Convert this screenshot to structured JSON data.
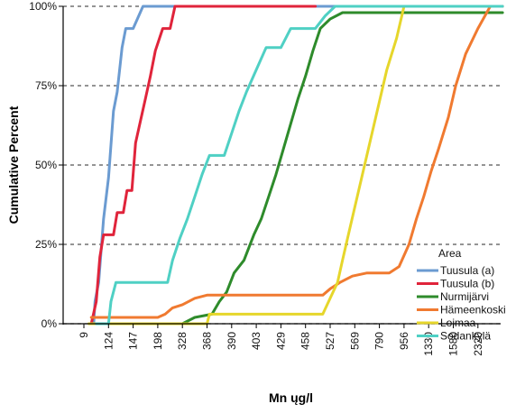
{
  "chart_data": {
    "type": "line",
    "title": "",
    "xlabel": "Mn ųg/l",
    "ylabel": "Cumulative Percent",
    "x_ticks": [
      "9",
      "124",
      "147",
      "198",
      "328",
      "368",
      "390",
      "403",
      "429",
      "458",
      "527",
      "569",
      "790",
      "956",
      "1330",
      "1580",
      "2320"
    ],
    "y_ticks": [
      "0%",
      "25%",
      "50%",
      "75%",
      "100%"
    ],
    "ylim": [
      0,
      100
    ],
    "grid": "horizontal dashed",
    "legend": {
      "title": "Area",
      "position": "bottom-right"
    },
    "series": [
      {
        "name": "Tuusula (a)",
        "color": "#6b9bd1",
        "points": [
          [
            0.4,
            0
          ],
          [
            0.45,
            7
          ],
          [
            0.6,
            13
          ],
          [
            0.8,
            33
          ],
          [
            1.0,
            46
          ],
          [
            1.2,
            67
          ],
          [
            1.35,
            73
          ],
          [
            1.55,
            87
          ],
          [
            1.7,
            93
          ],
          [
            2.0,
            93
          ],
          [
            2.4,
            100
          ],
          [
            17,
            100
          ]
        ]
      },
      {
        "name": "Tuusula (b)",
        "color": "#e0243b",
        "points": [
          [
            0.3,
            0
          ],
          [
            0.5,
            7
          ],
          [
            0.65,
            21
          ],
          [
            0.8,
            28
          ],
          [
            1.2,
            28
          ],
          [
            1.35,
            35
          ],
          [
            1.6,
            35
          ],
          [
            1.75,
            42
          ],
          [
            1.95,
            42
          ],
          [
            2.1,
            57
          ],
          [
            2.3,
            64
          ],
          [
            2.5,
            71
          ],
          [
            2.7,
            78
          ],
          [
            2.9,
            86
          ],
          [
            3.2,
            93
          ],
          [
            3.5,
            93
          ],
          [
            3.7,
            100
          ],
          [
            9.4,
            100
          ]
        ]
      },
      {
        "name": "Nurmijärvi",
        "color": "#2e8b2b",
        "points": [
          [
            4.0,
            0
          ],
          [
            4.5,
            2
          ],
          [
            5.2,
            3
          ],
          [
            5.5,
            7
          ],
          [
            5.8,
            10
          ],
          [
            6.1,
            16
          ],
          [
            6.5,
            20
          ],
          [
            6.9,
            28
          ],
          [
            7.2,
            33
          ],
          [
            7.5,
            40
          ],
          [
            7.8,
            47
          ],
          [
            8.1,
            55
          ],
          [
            8.4,
            63
          ],
          [
            8.7,
            71
          ],
          [
            9.0,
            78
          ],
          [
            9.3,
            86
          ],
          [
            9.6,
            93
          ],
          [
            10.0,
            96
          ],
          [
            10.5,
            98
          ],
          [
            17,
            98
          ]
        ]
      },
      {
        "name": "Hämeenkoski",
        "color": "#f07a30",
        "points": [
          [
            0.3,
            2
          ],
          [
            3.0,
            2
          ],
          [
            3.3,
            3
          ],
          [
            3.6,
            5
          ],
          [
            4.0,
            6
          ],
          [
            4.5,
            8
          ],
          [
            5.0,
            9
          ],
          [
            9.7,
            9
          ],
          [
            10.0,
            11
          ],
          [
            10.4,
            13
          ],
          [
            10.9,
            15
          ],
          [
            11.5,
            16
          ],
          [
            12.4,
            16
          ],
          [
            12.8,
            18
          ],
          [
            13.2,
            25
          ],
          [
            13.5,
            33
          ],
          [
            13.8,
            40
          ],
          [
            14.1,
            48
          ],
          [
            14.4,
            55
          ],
          [
            14.8,
            65
          ],
          [
            15.1,
            75
          ],
          [
            15.5,
            85
          ],
          [
            16.0,
            93
          ],
          [
            16.5,
            100
          ],
          [
            17,
            100
          ]
        ]
      },
      {
        "name": "Loimaa",
        "color": "#e6d62b",
        "points": [
          [
            0.2,
            0
          ],
          [
            5.0,
            0
          ],
          [
            5.1,
            3
          ],
          [
            9.7,
            3
          ],
          [
            10.0,
            8
          ],
          [
            10.3,
            13
          ],
          [
            10.5,
            20
          ],
          [
            10.8,
            30
          ],
          [
            11.1,
            40
          ],
          [
            11.4,
            50
          ],
          [
            11.7,
            60
          ],
          [
            12.0,
            70
          ],
          [
            12.3,
            80
          ],
          [
            12.7,
            90
          ],
          [
            13.0,
            100
          ]
        ]
      },
      {
        "name": "Sodankylä",
        "color": "#4fd0c4",
        "points": [
          [
            0.5,
            0
          ],
          [
            1.0,
            0
          ],
          [
            1.1,
            7
          ],
          [
            1.3,
            13
          ],
          [
            3.4,
            13
          ],
          [
            3.6,
            20
          ],
          [
            3.9,
            27
          ],
          [
            4.2,
            33
          ],
          [
            4.5,
            40
          ],
          [
            4.8,
            47
          ],
          [
            5.1,
            53
          ],
          [
            5.7,
            53
          ],
          [
            6.0,
            60
          ],
          [
            6.3,
            67
          ],
          [
            6.6,
            73
          ],
          [
            7.0,
            80
          ],
          [
            7.4,
            87
          ],
          [
            8.0,
            87
          ],
          [
            8.4,
            93
          ],
          [
            9.4,
            93
          ],
          [
            9.8,
            97
          ],
          [
            10.2,
            100
          ],
          [
            17,
            100
          ]
        ]
      }
    ]
  }
}
